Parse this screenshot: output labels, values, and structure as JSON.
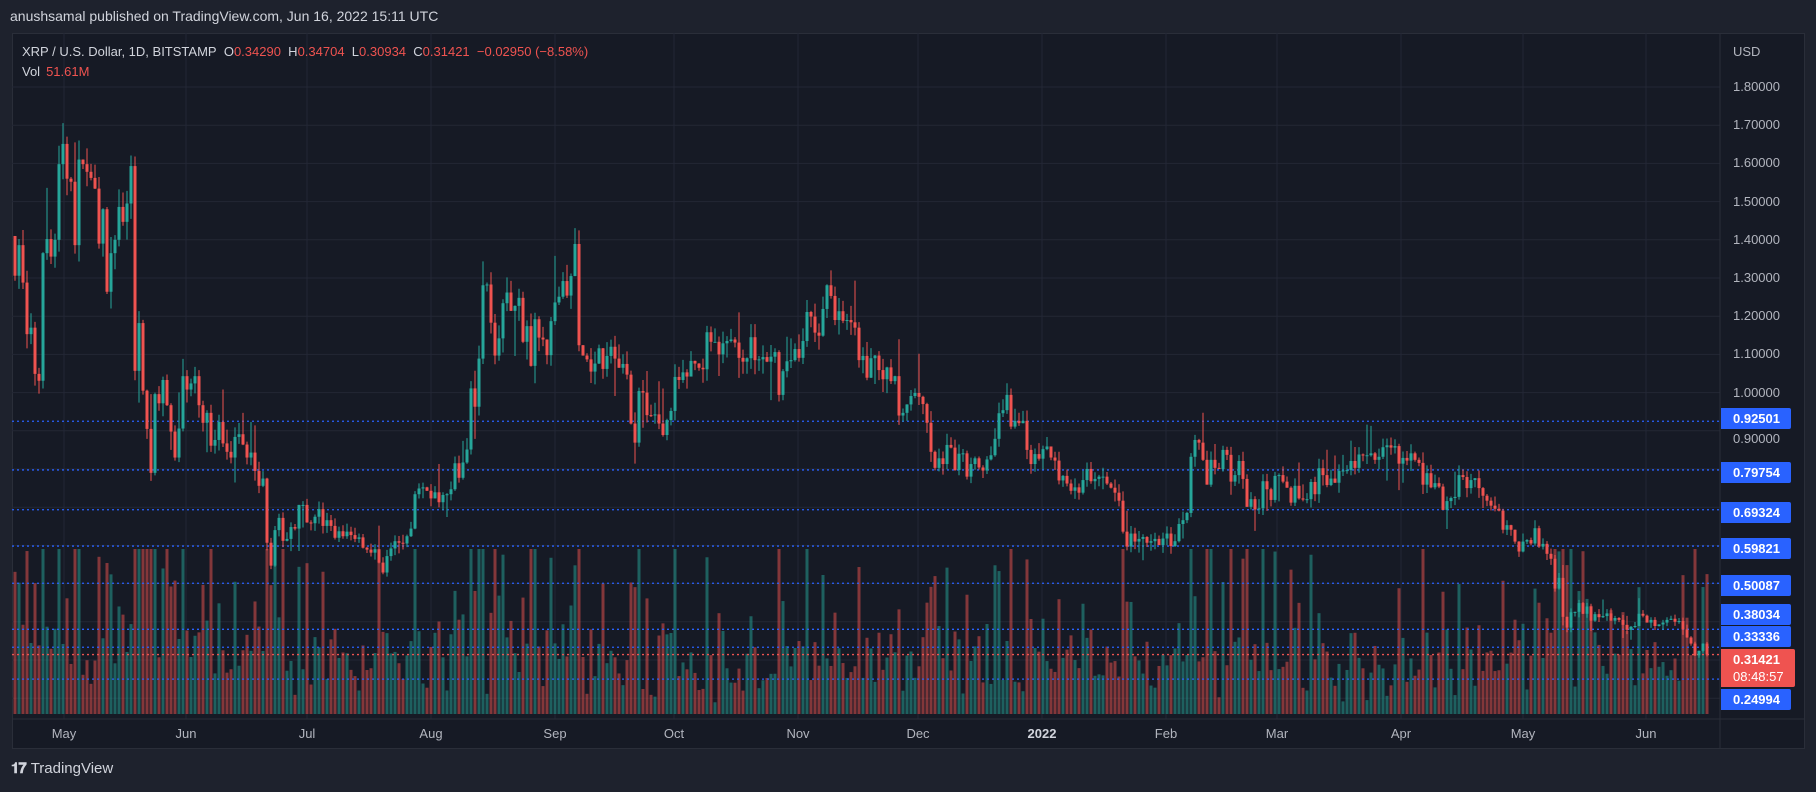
{
  "published": "anushsamal published on TradingView.com, Jun 16, 2022 15:11 UTC",
  "legend": {
    "symbol": "XRP / U.S. Dollar, 1D, BITSTAMP",
    "o_label": "O",
    "o": "0.34290",
    "h_label": "H",
    "h": "0.34704",
    "l_label": "L",
    "l": "0.30934",
    "c_label": "C",
    "c": "0.31421",
    "change": "−0.02950 (−8.58%)",
    "vol_label": "Vol",
    "vol": "51.61M"
  },
  "price_axis": {
    "currency": "USD",
    "ticks": [
      "1.80000",
      "1.70000",
      "1.60000",
      "1.50000",
      "1.40000",
      "1.30000",
      "1.20000",
      "1.10000",
      "1.00000",
      "0.90000"
    ]
  },
  "levels": [
    {
      "value": "0.92501"
    },
    {
      "value": "0.79754"
    },
    {
      "value": "0.69324"
    },
    {
      "value": "0.59821"
    },
    {
      "value": "0.50087"
    },
    {
      "value": "0.38034"
    },
    {
      "value": "0.33336"
    },
    {
      "value": "0.24994"
    }
  ],
  "current_price": {
    "value": "0.31421",
    "countdown": "08:48:57"
  },
  "time_axis": [
    "May",
    "Jun",
    "Jul",
    "Aug",
    "Sep",
    "Oct",
    "Nov",
    "Dec",
    "2022",
    "Feb",
    "Mar",
    "Apr",
    "May",
    "Jun"
  ],
  "brand": "TradingView",
  "colors": {
    "up": "#26a69a",
    "down": "#ef5350",
    "level": "#2962ff",
    "background": "#161a25"
  },
  "chart_data": {
    "type": "candlestick",
    "title": "XRP / U.S. Dollar, 1D, BITSTAMP",
    "ylabel": "USD",
    "ylim": [
      0.2,
      1.85
    ],
    "x_range": [
      "2021-04-19",
      "2022-06-16"
    ],
    "grid": true,
    "first_open": 1.41,
    "closes": [
      1.306,
      1.386,
      1.288,
      1.153,
      1.17,
      1.049,
      1.031,
      1.365,
      1.402,
      1.356,
      1.4,
      1.598,
      1.651,
      1.56,
      1.552,
      1.386,
      1.61,
      1.598,
      1.578,
      1.562,
      1.534,
      1.39,
      1.48,
      1.264,
      1.365,
      1.4,
      1.486,
      1.447,
      1.495,
      1.593,
      1.057,
      1.182,
      1.005,
      0.905,
      0.79,
      0.996,
      0.972,
      1.033,
      0.967,
      0.898,
      0.83,
      0.906,
      1.043,
      1.008,
      1.024,
      1.043,
      0.967,
      0.921,
      0.947,
      0.861,
      0.876,
      0.923,
      0.867,
      0.845,
      0.83,
      0.884,
      0.891,
      0.864,
      0.83,
      0.843,
      0.795,
      0.756,
      0.775,
      0.607,
      0.547,
      0.64,
      0.672,
      0.612,
      0.617,
      0.648,
      0.644,
      0.706,
      0.706,
      0.66,
      0.658,
      0.675,
      0.695,
      0.651,
      0.666,
      0.651,
      0.62,
      0.637,
      0.624,
      0.636,
      0.627,
      0.617,
      0.621,
      0.594,
      0.589,
      0.581,
      0.59,
      0.555,
      0.529,
      0.572,
      0.592,
      0.611,
      0.607,
      0.605,
      0.624,
      0.644,
      0.734,
      0.749,
      0.752,
      0.743,
      0.723,
      0.739,
      0.713,
      0.732,
      0.734,
      0.747,
      0.815,
      0.777,
      0.817,
      0.851,
      1.011,
      0.963,
      1.089,
      1.281,
      1.283,
      1.183,
      1.097,
      1.142,
      1.234,
      1.262,
      1.214,
      1.227,
      1.248,
      1.133,
      1.174,
      1.07,
      1.192,
      1.144,
      1.139,
      1.098,
      1.187,
      1.236,
      1.251,
      1.292,
      1.254,
      1.305,
      1.389,
      1.124,
      1.097,
      1.087,
      1.055,
      1.076,
      1.116,
      1.062,
      1.096,
      1.12,
      1.089,
      1.065,
      1.075,
      1.047,
      0.919,
      0.869,
      1.004,
      1.0,
      0.941,
      0.94,
      0.943,
      0.919,
      0.889,
      0.928,
      0.952,
      1.041,
      1.033,
      1.053,
      1.042,
      1.083,
      1.076,
      1.065,
      1.061,
      1.158,
      1.133,
      1.133,
      1.1,
      1.129,
      1.135,
      1.139,
      1.131,
      1.091,
      1.081,
      1.09,
      1.145,
      1.085,
      1.087,
      1.093,
      1.081,
      1.094,
      1.106,
      0.994,
      1.056,
      1.082,
      1.085,
      1.114,
      1.091,
      1.135,
      1.211,
      1.199,
      1.157,
      1.149,
      1.219,
      1.281,
      1.253,
      1.19,
      1.213,
      1.188,
      1.19,
      1.184,
      1.17,
      1.085,
      1.096,
      1.039,
      1.09,
      1.097,
      1.059,
      1.035,
      1.066,
      1.03,
      1.043,
      0.94,
      0.947,
      0.969,
      0.991,
      0.999,
      0.989,
      0.97,
      0.921,
      0.845,
      0.803,
      0.828,
      0.813,
      0.863,
      0.856,
      0.797,
      0.84,
      0.841,
      0.78,
      0.813,
      0.828,
      0.804,
      0.796,
      0.825,
      0.836,
      0.879,
      0.946,
      0.954,
      0.994,
      0.911,
      0.926,
      0.92,
      0.926,
      0.85,
      0.813,
      0.839,
      0.827,
      0.852,
      0.859,
      0.83,
      0.822,
      0.77,
      0.782,
      0.762,
      0.743,
      0.752,
      0.738,
      0.771,
      0.8,
      0.768,
      0.774,
      0.78,
      0.78,
      0.762,
      0.751,
      0.738,
      0.717,
      0.636,
      0.597,
      0.631,
      0.61,
      0.617,
      0.622,
      0.607,
      0.611,
      0.617,
      0.601,
      0.618,
      0.631,
      0.598,
      0.611,
      0.656,
      0.666,
      0.685,
      0.832,
      0.876,
      0.869,
      0.824,
      0.759,
      0.824,
      0.803,
      0.8,
      0.85,
      0.837,
      0.767,
      0.784,
      0.821,
      0.774,
      0.701,
      0.721,
      0.694,
      0.697,
      0.768,
      0.747,
      0.719,
      0.782,
      0.784,
      0.767,
      0.751,
      0.712,
      0.756,
      0.723,
      0.72,
      0.721,
      0.766,
      0.734,
      0.802,
      0.784,
      0.758,
      0.775,
      0.764,
      0.795,
      0.796,
      0.797,
      0.821,
      0.803,
      0.838,
      0.836,
      0.836,
      0.841,
      0.824,
      0.832,
      0.857,
      0.862,
      0.856,
      0.86,
      0.814,
      0.829,
      0.822,
      0.841,
      0.824,
      0.816,
      0.759,
      0.789,
      0.752,
      0.763,
      0.754,
      0.693,
      0.716,
      0.724,
      0.727,
      0.784,
      0.779,
      0.75,
      0.771,
      0.776,
      0.75,
      0.73,
      0.717,
      0.704,
      0.696,
      0.691,
      0.641,
      0.653,
      0.641,
      0.61,
      0.584,
      0.61,
      0.614,
      0.605,
      0.645,
      0.597,
      0.604,
      0.578,
      0.565,
      0.487,
      0.515,
      0.413,
      0.385,
      0.425,
      0.426,
      0.449,
      0.421,
      0.44,
      0.403,
      0.42,
      0.412,
      0.415,
      0.422,
      0.403,
      0.41,
      0.405,
      0.392,
      0.379,
      0.387,
      0.389,
      0.421,
      0.416,
      0.398,
      0.405,
      0.389,
      0.393,
      0.398,
      0.405,
      0.408,
      0.4,
      0.402,
      0.38,
      0.359,
      0.343,
      0.312,
      0.324,
      0.3429,
      0.31421
    ],
    "last_candle": {
      "open": 0.3429,
      "high": 0.34704,
      "low": 0.30934,
      "close": 0.31421
    },
    "last_volume": "51.61M",
    "horizontal_levels": [
      0.92501,
      0.79754,
      0.69324,
      0.59821,
      0.50087,
      0.38034,
      0.33336,
      0.24994
    ]
  }
}
